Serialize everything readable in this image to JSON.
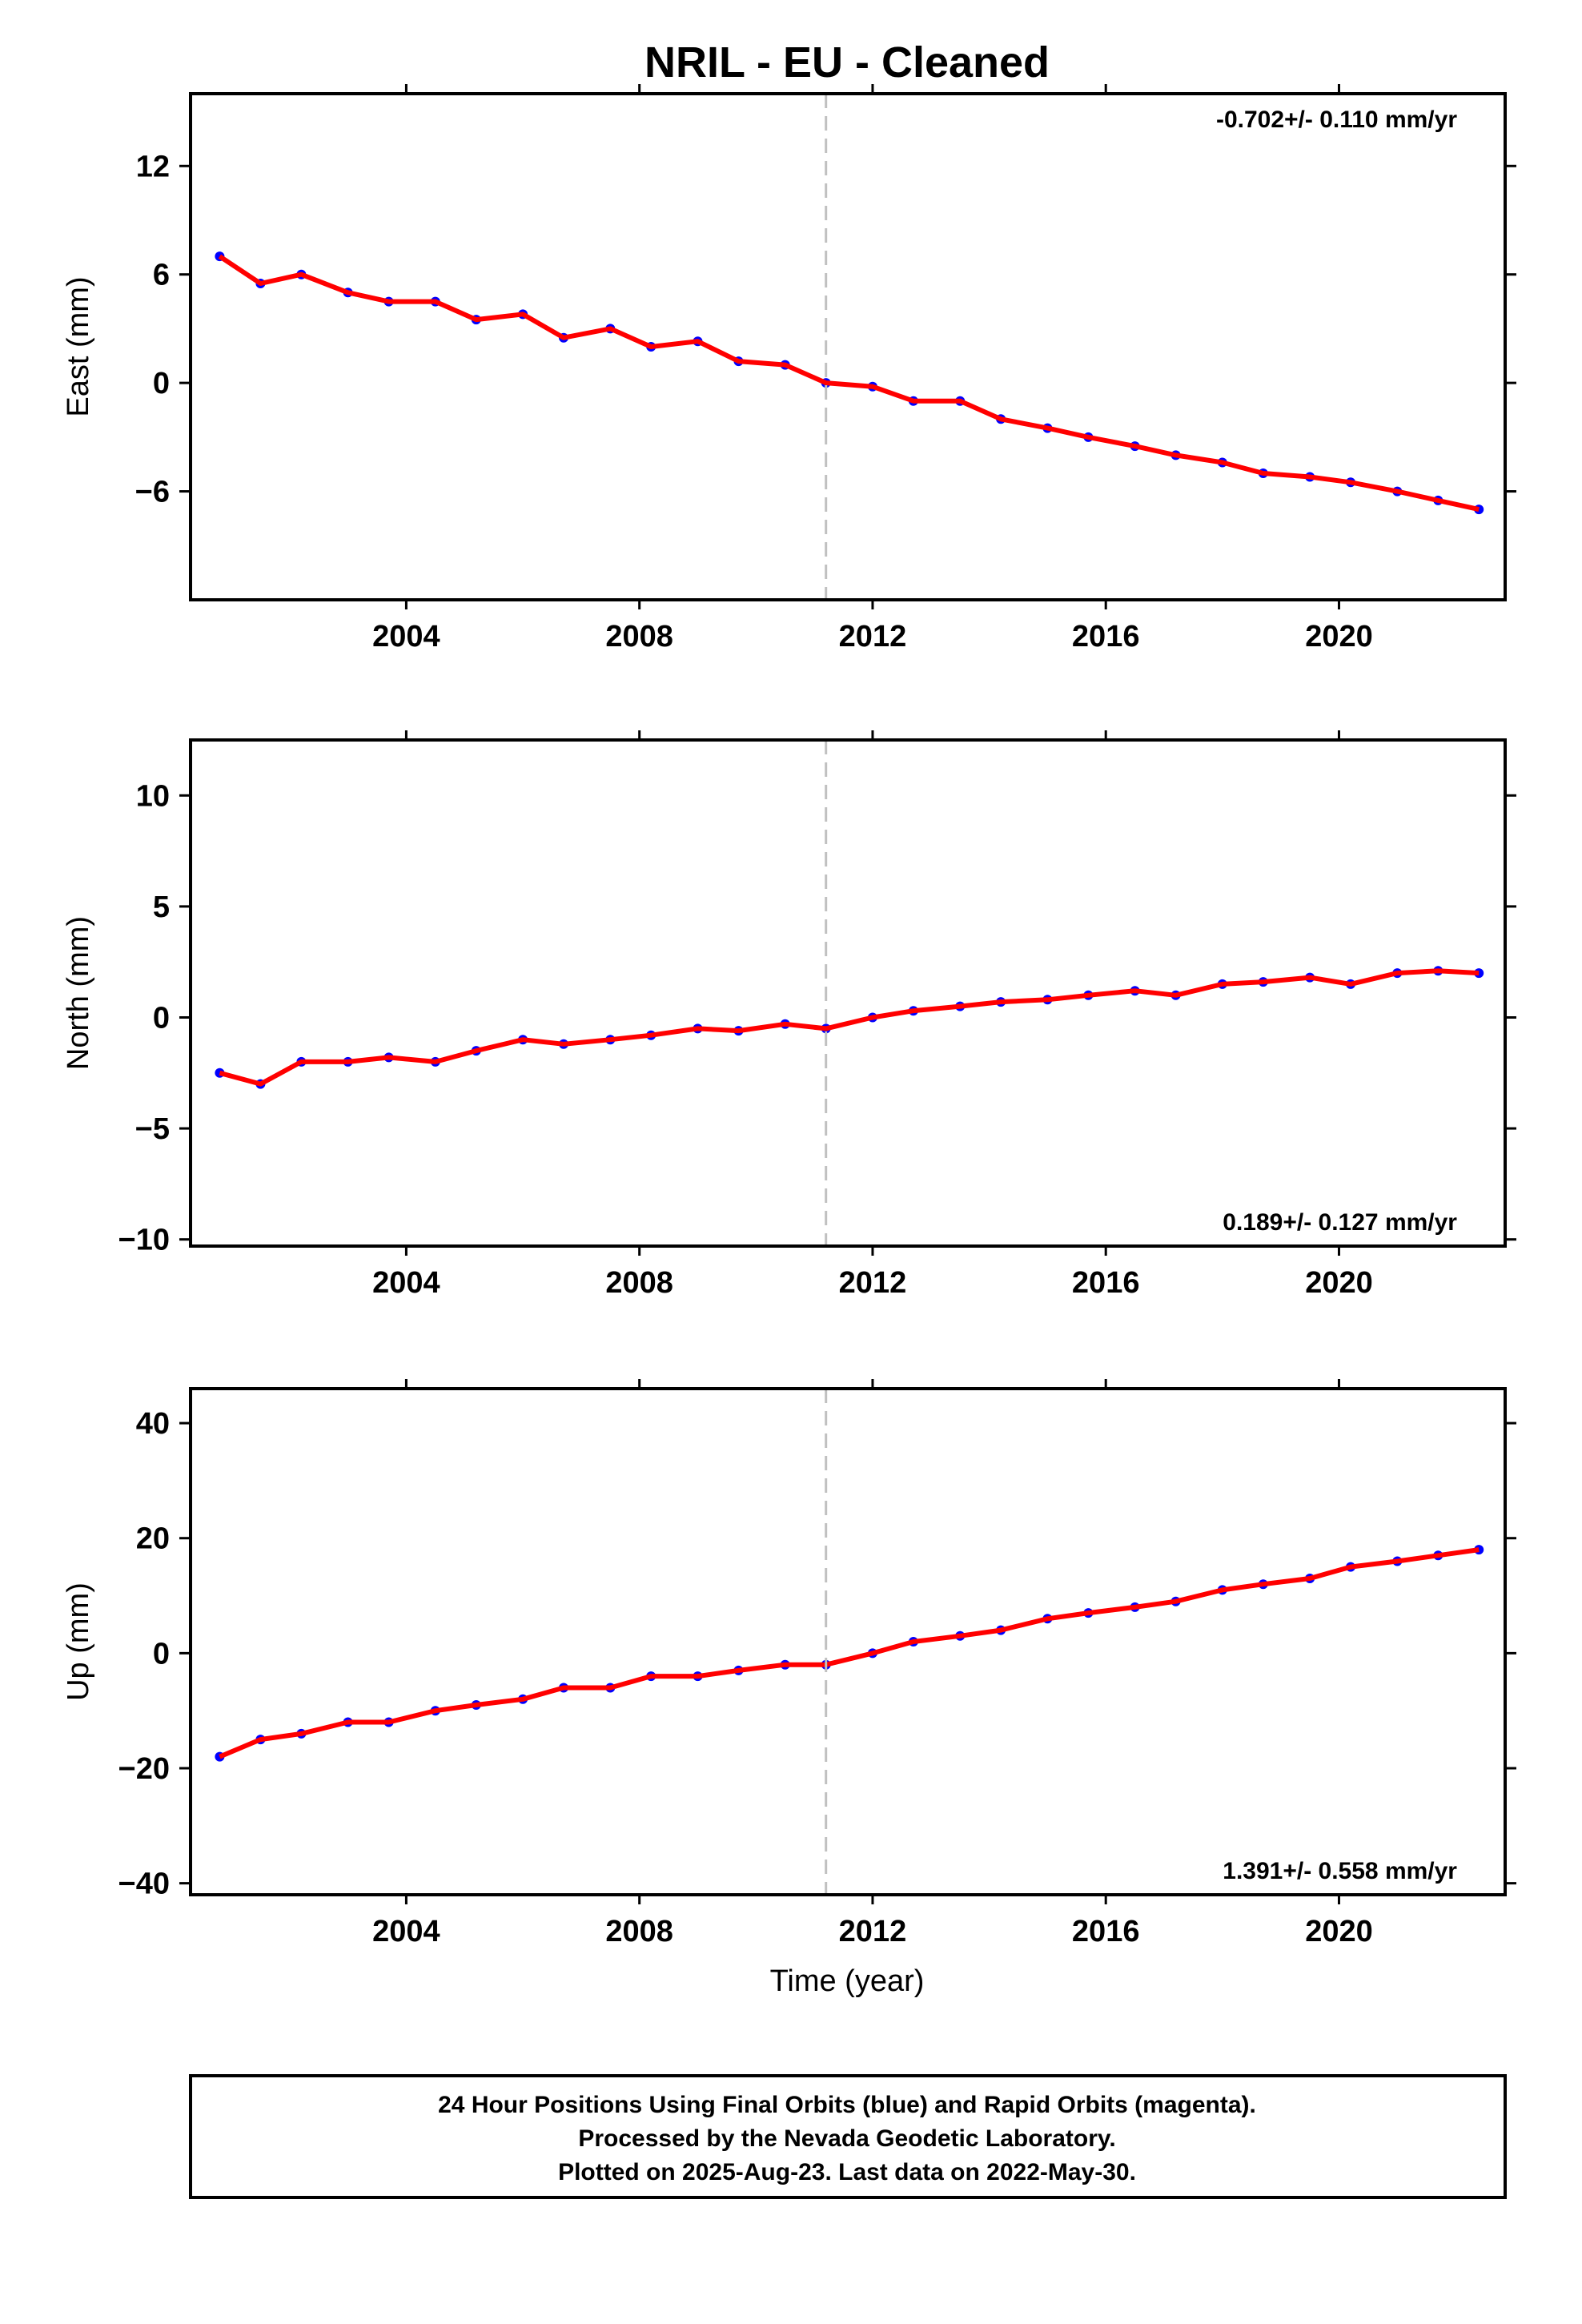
{
  "title": "NRIL  - EU - Cleaned",
  "xlabel": "Time (year)",
  "colors": {
    "points": "#0000ff",
    "fit": "#ff0000",
    "break_line": "#c0c0c0",
    "frame": "#000000"
  },
  "footer": {
    "line1": "24 Hour Positions Using Final Orbits (blue) and Rapid Orbits (magenta).",
    "line2": "Processed by the Nevada Geodetic Laboratory.",
    "line3": "Plotted on 2025-Aug-23. Last data on 2022-May-30."
  },
  "chart_data": [
    {
      "type": "scatter",
      "ylabel": "East (mm)",
      "rate_label": "-0.702+/- 0.110 mm/yr",
      "rate_position": "top-right",
      "xlim": [
        2000.3,
        2022.85
      ],
      "ylim": [
        -12,
        16
      ],
      "xticks": [
        2004,
        2008,
        2012,
        2016,
        2020
      ],
      "xtick_labels": [
        "2004",
        "2008",
        "2012",
        "2016",
        "2020"
      ],
      "yticks": [
        12,
        6,
        0,
        -6
      ],
      "ytick_labels": [
        "12",
        "6",
        "0",
        "−6"
      ],
      "break_x": 2011.2,
      "series": [
        {
          "x": [
            2000.8,
            2001.5,
            2002.2,
            2003.0,
            2003.7,
            2004.5,
            2005.2,
            2006.0,
            2006.7,
            2007.5,
            2008.2,
            2009.0,
            2009.7,
            2010.5,
            2011.2,
            2012.0,
            2012.7,
            2013.5,
            2014.2,
            2015.0,
            2015.7,
            2016.5,
            2017.2,
            2018.0,
            2018.7,
            2019.5,
            2020.2,
            2021.0,
            2021.7,
            2022.4
          ],
          "y": [
            7.0,
            5.5,
            6.0,
            5.0,
            4.5,
            4.5,
            3.5,
            3.8,
            2.5,
            3.0,
            2.0,
            2.3,
            1.2,
            1.0,
            0.0,
            -0.2,
            -1.0,
            -1.0,
            -2.0,
            -2.5,
            -3.0,
            -3.5,
            -4.0,
            -4.4,
            -5.0,
            -5.2,
            -5.5,
            -6.0,
            -6.5,
            -7.0
          ]
        }
      ]
    },
    {
      "type": "scatter",
      "ylabel": "North (mm)",
      "rate_label": "0.189+/- 0.127 mm/yr",
      "rate_position": "bottom-right",
      "xlim": [
        2000.3,
        2022.85
      ],
      "ylim": [
        -10.3,
        12.5
      ],
      "xticks": [
        2004,
        2008,
        2012,
        2016,
        2020
      ],
      "xtick_labels": [
        "2004",
        "2008",
        "2012",
        "2016",
        "2020"
      ],
      "yticks": [
        10,
        5,
        0,
        -5,
        -10
      ],
      "ytick_labels": [
        "10",
        "5",
        "0",
        "−5",
        "−10"
      ],
      "break_x": 2011.2,
      "series": [
        {
          "x": [
            2000.8,
            2001.5,
            2002.2,
            2003.0,
            2003.7,
            2004.5,
            2005.2,
            2006.0,
            2006.7,
            2007.5,
            2008.2,
            2009.0,
            2009.7,
            2010.5,
            2011.2,
            2012.0,
            2012.7,
            2013.5,
            2014.2,
            2015.0,
            2015.7,
            2016.5,
            2017.2,
            2018.0,
            2018.7,
            2019.5,
            2020.2,
            2021.0,
            2021.7,
            2022.4
          ],
          "y": [
            -2.5,
            -3.0,
            -2.0,
            -2.0,
            -1.8,
            -2.0,
            -1.5,
            -1.0,
            -1.2,
            -1.0,
            -0.8,
            -0.5,
            -0.6,
            -0.3,
            -0.5,
            0.0,
            0.3,
            0.5,
            0.7,
            0.8,
            1.0,
            1.2,
            1.0,
            1.5,
            1.6,
            1.8,
            1.5,
            2.0,
            2.1,
            2.0
          ]
        }
      ]
    },
    {
      "type": "scatter",
      "ylabel": "Up (mm)",
      "rate_label": "1.391+/- 0.558 mm/yr",
      "rate_position": "bottom-right",
      "xlim": [
        2000.3,
        2022.85
      ],
      "ylim": [
        -42,
        46
      ],
      "xticks": [
        2004,
        2008,
        2012,
        2016,
        2020
      ],
      "xtick_labels": [
        "2004",
        "2008",
        "2012",
        "2016",
        "2020"
      ],
      "yticks": [
        40,
        20,
        0,
        -20,
        -40
      ],
      "ytick_labels": [
        "40",
        "20",
        "0",
        "−20",
        "−40"
      ],
      "break_x": 2011.2,
      "series": [
        {
          "x": [
            2000.8,
            2001.5,
            2002.2,
            2003.0,
            2003.7,
            2004.5,
            2005.2,
            2006.0,
            2006.7,
            2007.5,
            2008.2,
            2009.0,
            2009.7,
            2010.5,
            2011.2,
            2012.0,
            2012.7,
            2013.5,
            2014.2,
            2015.0,
            2015.7,
            2016.5,
            2017.2,
            2018.0,
            2018.7,
            2019.5,
            2020.2,
            2021.0,
            2021.7,
            2022.4
          ],
          "y": [
            -18,
            -15,
            -14,
            -12,
            -12,
            -10,
            -9,
            -8,
            -6,
            -6,
            -4,
            -4,
            -3,
            -2,
            -2,
            0,
            2,
            3,
            4,
            6,
            7,
            8,
            9,
            11,
            12,
            13,
            15,
            16,
            17,
            18
          ]
        }
      ]
    }
  ]
}
